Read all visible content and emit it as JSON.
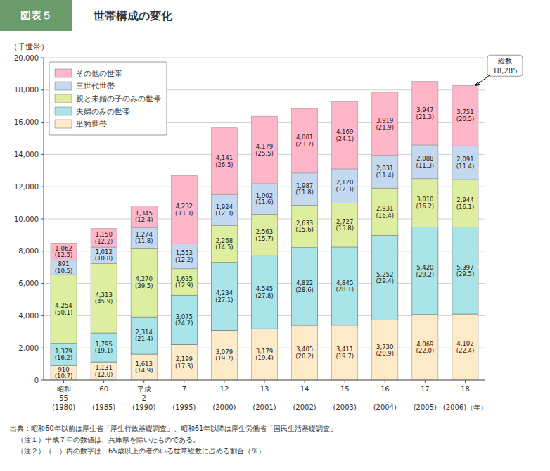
{
  "chart_data": {
    "type": "bar",
    "stacked": true,
    "title": "世帯構成の変化",
    "subtitle": "図表５",
    "y_label": "（千世帯）",
    "categories": [
      "昭和\n55\n(1980)",
      "60\n\n(1985)",
      "平成\n2\n(1990)",
      "7\n\n(1995)",
      "12\n\n(2000)",
      "13\n\n(2001)",
      "14\n\n(2002)",
      "15\n\n(2003)",
      "16\n\n(2004)",
      "17\n\n(2005)",
      "18\n\n(2006)（年）"
    ],
    "series": [
      {
        "name": "単独世帯",
        "color": "#FDEAC8",
        "values": [
          910,
          1131,
          1613,
          2199,
          3079,
          3179,
          3405,
          3411,
          3730,
          4069,
          4102
        ],
        "value_labels": [
          "910\n(10.7)",
          "1,131\n(12.0)",
          "1,613\n(14.9)",
          "2,199\n(17.3)",
          "3,079\n(19.7)",
          "3,179\n(19.4)",
          "3,405\n(20.2)",
          "3,411\n(19.7)",
          "3,730\n(20.9)",
          "4,069\n(22.0)",
          "4,102\n(22.4)"
        ]
      },
      {
        "name": "夫婦のみの世帯",
        "color": "#A8E4E8",
        "values": [
          1379,
          1795,
          2314,
          3075,
          4234,
          4545,
          4822,
          4845,
          5252,
          5420,
          5397
        ],
        "value_labels": [
          "1,379\n(16.2)",
          "1,795\n(19.1)",
          "2,314\n(21.4)",
          "3,075\n(24.2)",
          "4,234\n(27.1)",
          "4,545\n(27.8)",
          "4,822\n(28.6)",
          "4,845\n(28.1)",
          "5,252\n(29.4)",
          "5,420\n(29.2)",
          "5,397\n(29.5)"
        ]
      },
      {
        "name": "親と未婚の子のみの世帯",
        "color": "#DDEEA0",
        "values": [
          4254,
          4313,
          4270,
          1635,
          2268,
          2563,
          2633,
          2727,
          2931,
          3010,
          2944
        ],
        "value_labels": [
          "4,254\n(50.1)",
          "4,313\n(45.9)",
          "4,270\n(39.5)",
          "1,635\n(12.9)",
          "2,268\n(14.5)",
          "2,563\n(15.7)",
          "2,633\n(15.6)",
          "2,727\n(15.8)",
          "2,931\n(16.4)",
          "3,010\n(16.2)",
          "2,944\n(16.1)"
        ]
      },
      {
        "name": "三世代世帯",
        "color": "#C4D8F0",
        "values": [
          891,
          1012,
          1274,
          1553,
          1924,
          1902,
          1987,
          2120,
          2031,
          2088,
          2091
        ],
        "value_labels": [
          "891\n(10.5)",
          "1,012\n(10.8)",
          "1,274\n(11.8)",
          "1,553\n(12.2)",
          "1,924\n(12.3)",
          "1,902\n(11.6)",
          "1,987\n(11.8)",
          "2,120\n(12.3)",
          "2,031\n(11.4)",
          "2,088\n(11.3)",
          "2,091\n(11.4)"
        ]
      },
      {
        "name": "その他の世帯",
        "color": "#FFB6C8",
        "values": [
          1062,
          1150,
          1345,
          4232,
          4141,
          4179,
          4001,
          4169,
          3919,
          3947,
          3751
        ],
        "value_labels": [
          "1,062\n(12.5)",
          "1,150\n(12.2)",
          "1,345\n(12.4)",
          "4,232\n(33.3)",
          "4,141\n(26.5)",
          "4,179\n(25.5)",
          "4,001\n(23.7)",
          "4,169\n(24.1)",
          "3,919\n(21.9)",
          "3,947\n(21.3)",
          "3,751\n(20.5)"
        ]
      }
    ],
    "data_labels": true,
    "ylim": [
      0,
      20000
    ],
    "yticks": [
      0,
      {
        "value": 2000,
        "label": "2,000"
      },
      {
        "value": 4000,
        "label": "4,000"
      },
      {
        "value": 6000,
        "label": "6,000"
      },
      {
        "value": 8000,
        "label": "8,000"
      },
      {
        "value": 10000,
        "label": "10,000"
      },
      {
        "value": 12000,
        "label": "12,000"
      },
      {
        "value": 14000,
        "label": "14,000"
      },
      {
        "value": 16000,
        "label": "16,000"
      },
      {
        "value": 18000,
        "label": "18,000"
      },
      {
        "value": 20000,
        "label": "20,000"
      }
    ],
    "grid": true,
    "legend": "upper left",
    "annotations": [
      {
        "text": "総数",
        "value": 18285,
        "label": "18,285"
      }
    ],
    "footnotes": [
      "出典：昭和60年以前は厚生省「厚生行政基礎調査」、昭和61年以降は厚生労働省「国民生活基礎調査」",
      "　（注１）平成７年の数値は、兵庫県を除いたものである。",
      "　（注２）（　）内の数字は、65歳以上の者のいる世帯総数に占める割合（％）"
    ]
  }
}
